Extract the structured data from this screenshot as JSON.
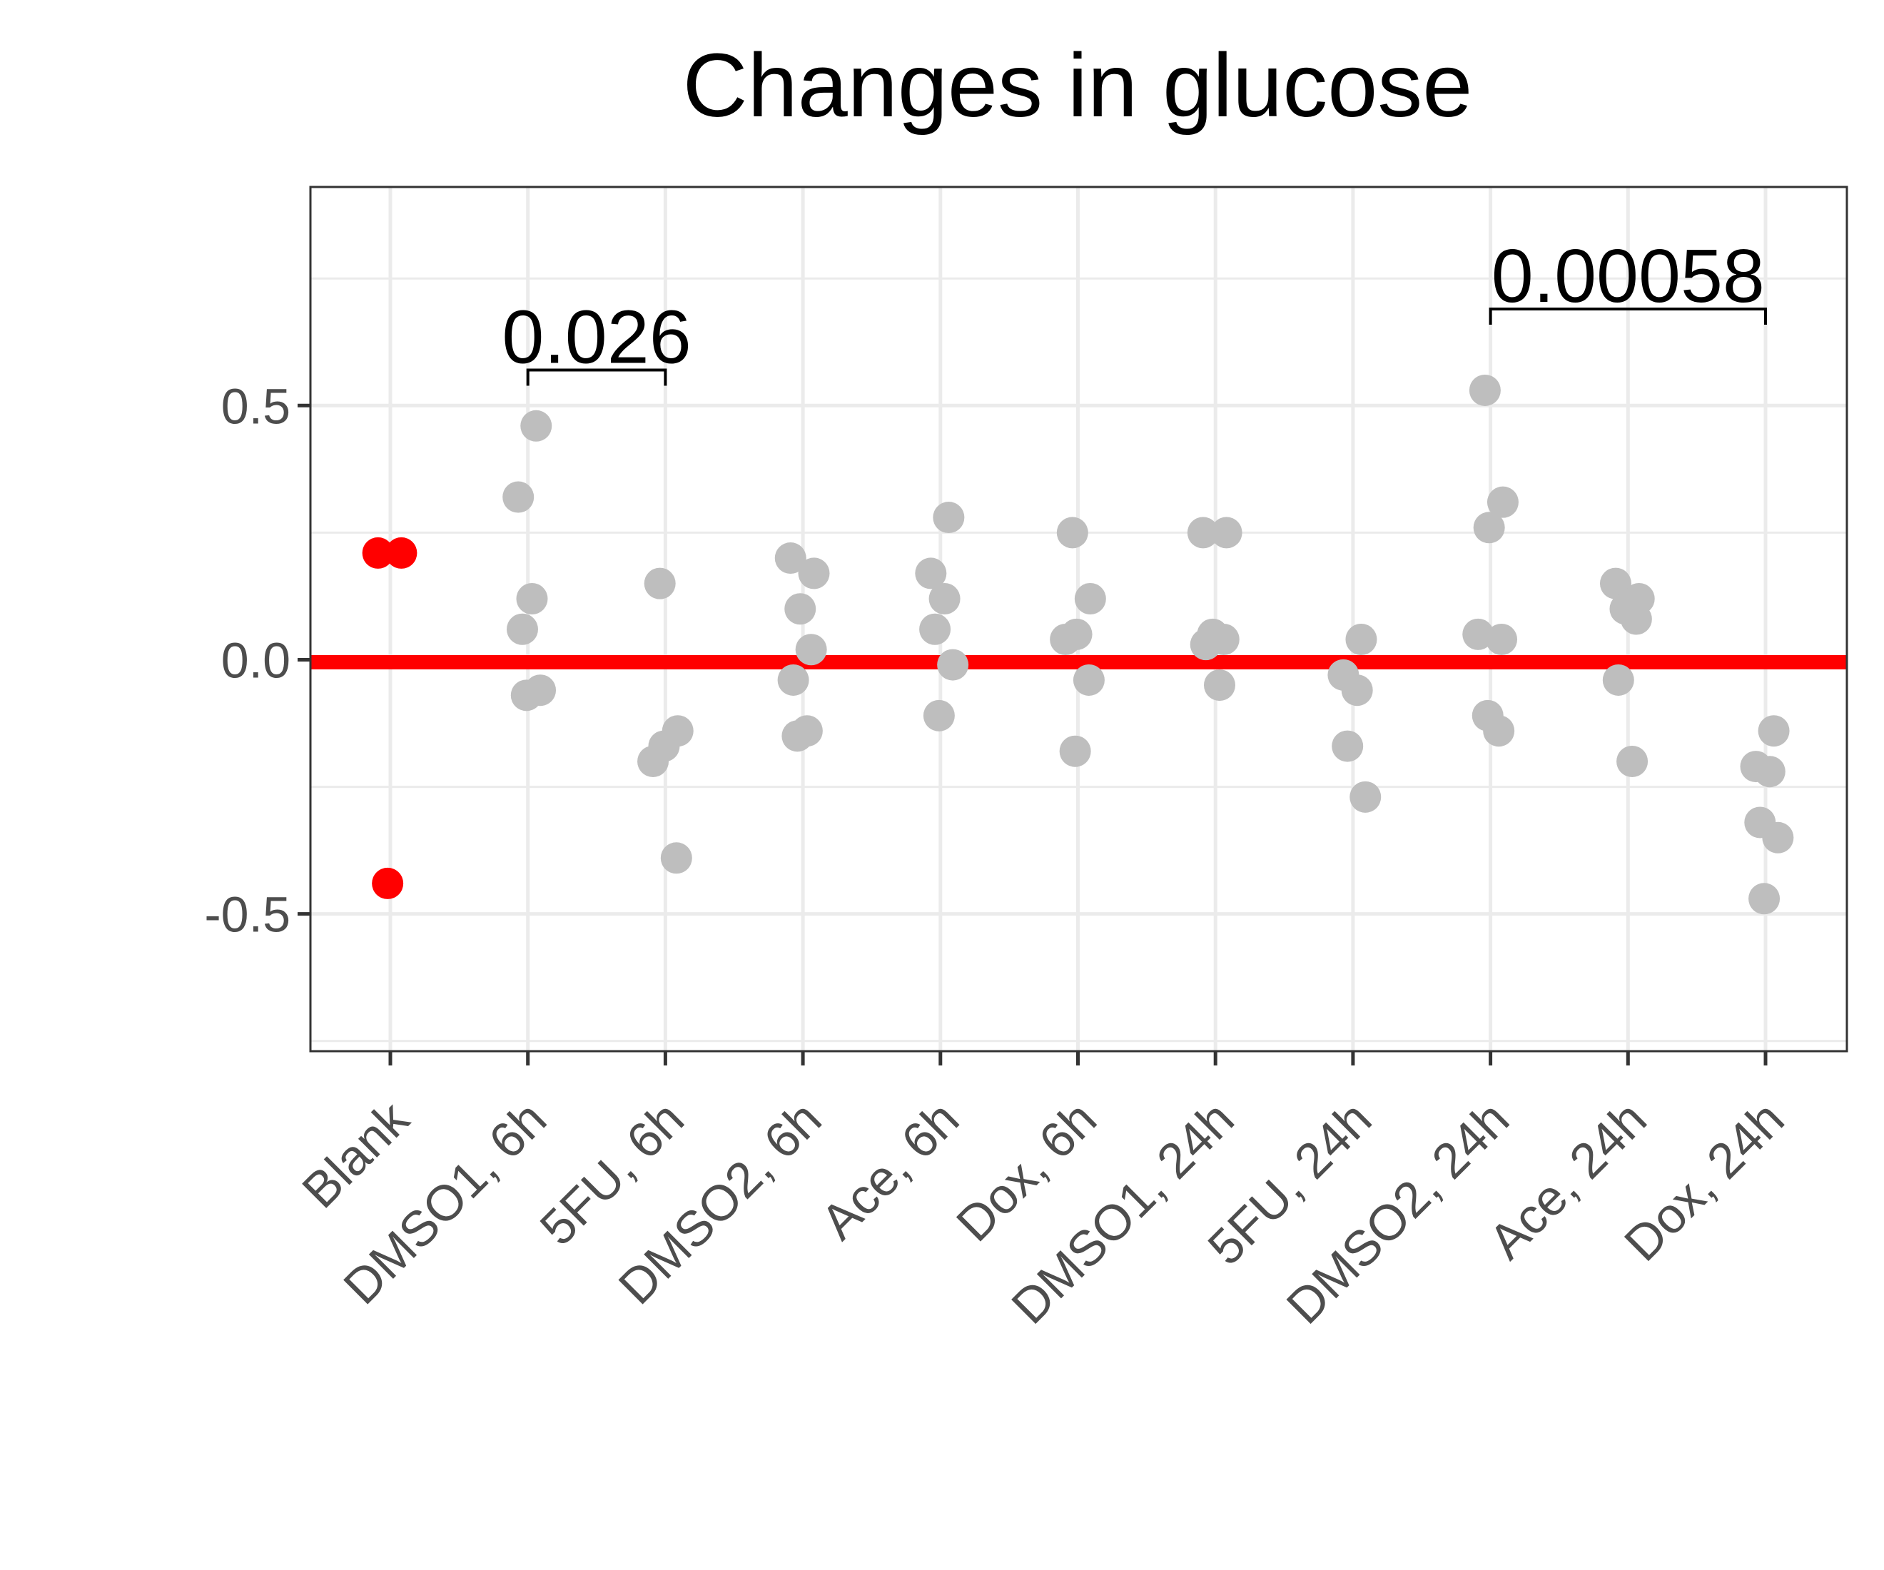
{
  "chart_data": {
    "type": "scatter",
    "title": "Changes in glucose",
    "xlabel": "",
    "ylabel": "",
    "ylim": [
      -0.77,
      0.93
    ],
    "yticks": [
      0.5,
      0.0,
      -0.5
    ],
    "ytick_labels": [
      "0.5",
      "0.0",
      "-0.5"
    ],
    "grid": true,
    "legend": "none",
    "reference_line": {
      "y": -0.005,
      "color": "#ff0000"
    },
    "colors": {
      "blank": "#ff0000",
      "sample": "#bebebe",
      "grid": "#ebebeb",
      "axis": "#333333"
    },
    "categories": [
      "Blank",
      "DMSO1, 6h",
      "5FU, 6h",
      "DMSO2, 6h",
      "Ace, 6h",
      "Dox, 6h",
      "DMSO1, 24h",
      "5FU, 24h",
      "DMSO2, 24h",
      "Ace, 24h",
      "Dox, 24h"
    ],
    "series": [
      {
        "category": "Blank",
        "color": "#ff0000",
        "values": [
          0.21,
          0.21,
          -0.44
        ]
      },
      {
        "category": "DMSO1, 6h",
        "color": "#bebebe",
        "values": [
          0.46,
          0.32,
          0.12,
          0.06,
          -0.06,
          -0.07
        ]
      },
      {
        "category": "5FU, 6h",
        "color": "#bebebe",
        "values": [
          0.15,
          -0.14,
          -0.17,
          -0.2,
          -0.39
        ]
      },
      {
        "category": "DMSO2, 6h",
        "color": "#bebebe",
        "values": [
          0.2,
          0.17,
          0.1,
          0.02,
          -0.04,
          -0.14,
          -0.15
        ]
      },
      {
        "category": "Ace, 6h",
        "color": "#bebebe",
        "values": [
          0.28,
          0.17,
          0.12,
          0.06,
          -0.01,
          -0.11
        ]
      },
      {
        "category": "Dox, 6h",
        "color": "#bebebe",
        "values": [
          0.25,
          0.12,
          0.05,
          0.04,
          -0.04,
          -0.18
        ]
      },
      {
        "category": "DMSO1, 24h",
        "color": "#bebebe",
        "values": [
          0.25,
          0.25,
          0.05,
          0.04,
          0.03,
          -0.05
        ]
      },
      {
        "category": "5FU, 24h",
        "color": "#bebebe",
        "values": [
          0.04,
          -0.03,
          -0.06,
          -0.17,
          -0.27
        ]
      },
      {
        "category": "DMSO2, 24h",
        "color": "#bebebe",
        "values": [
          0.53,
          0.31,
          0.26,
          0.05,
          0.04,
          -0.11,
          -0.14
        ]
      },
      {
        "category": "Ace, 24h",
        "color": "#bebebe",
        "values": [
          0.15,
          0.12,
          0.1,
          0.08,
          -0.04,
          -0.2
        ]
      },
      {
        "category": "Dox, 24h",
        "color": "#bebebe",
        "values": [
          -0.14,
          -0.21,
          -0.22,
          -0.32,
          -0.35,
          -0.47
        ]
      }
    ],
    "annotations": [
      {
        "from": "DMSO1, 6h",
        "to": "5FU, 6h",
        "y": 0.57,
        "label": "0.026"
      },
      {
        "from": "DMSO2, 24h",
        "to": "Dox, 24h",
        "y": 0.69,
        "label": "0.00058"
      }
    ]
  }
}
